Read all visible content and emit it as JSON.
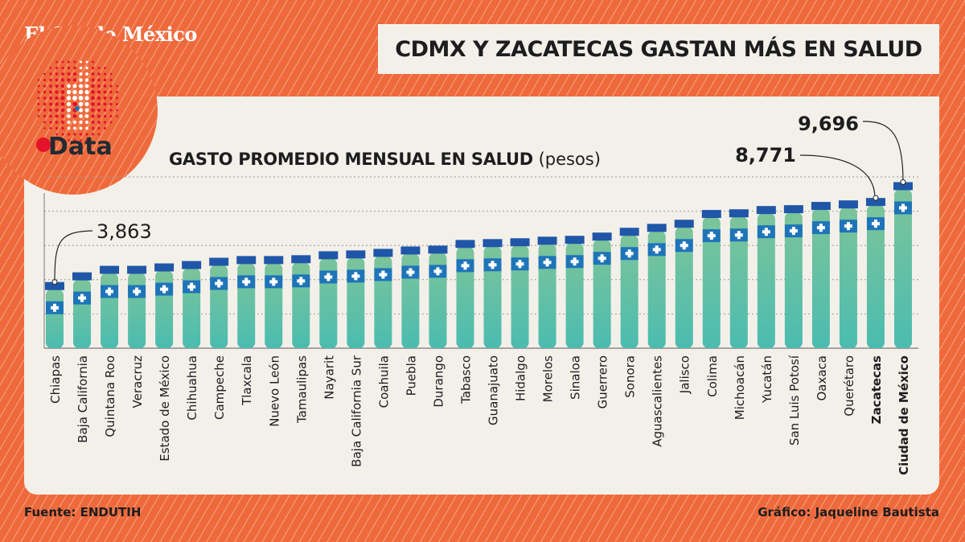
{
  "brand": "El Sol de México",
  "logo_text": "Data",
  "header": {
    "title": "CDMX Y ZACATECAS GASTAN MÁS EN SALUD"
  },
  "footer": {
    "source": "Fuente: ENDUTIH",
    "credit": "Gráfico: Jaqueline Bautista"
  },
  "colors": {
    "background": "#ee6a3c",
    "panel": "#f3f0ea",
    "bottle_top": "#7cc49a",
    "bottle_bottom": "#4bbcb0",
    "cap": "#1f56a8",
    "band": "#1e74b8"
  },
  "chart_data": {
    "type": "bar",
    "title": "GASTO PROMEDIO MENSUAL EN SALUD",
    "title_unit": "(pesos)",
    "ylim": [
      0,
      10000
    ],
    "grid": true,
    "gridlines": [
      2000,
      4000,
      6000,
      8000,
      10000
    ],
    "categories": [
      "Chiapas",
      "Baja California",
      "Quintana Roo",
      "Veracruz",
      "Estado de México",
      "Chihuahua",
      "Campeche",
      "Tlaxcala",
      "Nuevo León",
      "Tamaulipas",
      "Nayarit",
      "Baja California Sur",
      "Coahuila",
      "Puebla",
      "Durango",
      "Tabasco",
      "Guanajuato",
      "Hidalgo",
      "Morelos",
      "Sinaloa",
      "Guerrero",
      "Sonora",
      "Aguascalientes",
      "Jalisco",
      "Colima",
      "Michoacán",
      "Yucatán",
      "San Luis Potosí",
      "Oaxaca",
      "Querétaro",
      "Zacatecas",
      "Ciudad de México"
    ],
    "values": [
      3863,
      4430,
      4810,
      4810,
      4950,
      5090,
      5280,
      5380,
      5380,
      5430,
      5660,
      5710,
      5800,
      5940,
      5990,
      6320,
      6370,
      6420,
      6510,
      6560,
      6750,
      7030,
      7260,
      7500,
      8070,
      8110,
      8300,
      8350,
      8540,
      8630,
      8771,
      9696
    ],
    "highlighted": [
      "Zacatecas",
      "Ciudad de México"
    ],
    "annotations": [
      {
        "category": "Chiapas",
        "label": "3,863"
      },
      {
        "category": "Zacatecas",
        "label": "8,771"
      },
      {
        "category": "Ciudad de México",
        "label": "9,696"
      }
    ]
  }
}
